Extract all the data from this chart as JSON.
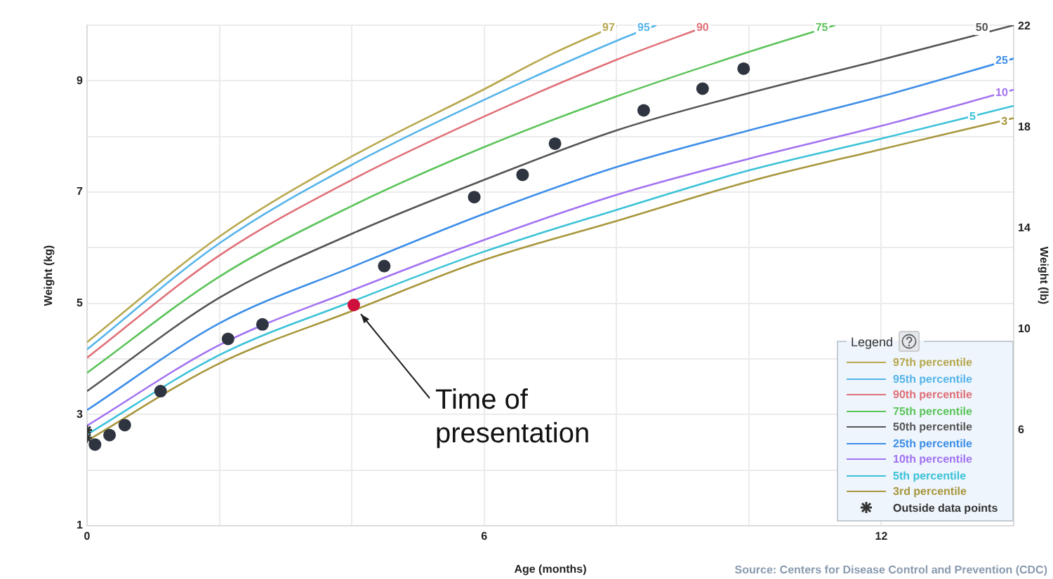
{
  "chart_data": {
    "type": "line",
    "xlabel": "Age (months)",
    "ylabel": "Weight (kg)",
    "y2label": "Weight (lb)",
    "legend_title": "Legend",
    "xlim": [
      0,
      14
    ],
    "xticks": [
      0,
      {
        "value": 2,
        "label": null
      },
      {
        "value": 4,
        "label": null
      },
      6,
      {
        "value": 8,
        "label": null
      },
      {
        "value": 10,
        "label": null
      },
      12
    ],
    "ylim": [
      1,
      10
    ],
    "yticks": [
      1,
      {
        "value": 2,
        "label": null
      },
      3,
      {
        "value": 4,
        "label": null
      },
      5,
      {
        "value": 6,
        "label": null
      },
      7,
      {
        "value": 8,
        "label": null
      },
      9,
      {
        "value": 10,
        "label": null
      }
    ],
    "y2lim": [
      2.2046,
      22.046
    ],
    "y2ticks": [
      6,
      10,
      14,
      18,
      22
    ],
    "grid": true,
    "legend": "bottom right",
    "series": [
      {
        "name": "97th percentile",
        "marker": "none",
        "color": "#b8a84e",
        "x": [
          0,
          2,
          4,
          6,
          7,
          8.0
        ],
        "values": [
          4.3,
          6.2,
          7.64,
          8.85,
          9.47,
          10
        ]
      },
      {
        "name": "95th percentile",
        "marker": "none",
        "color": "#55b4ea",
        "x": [
          0,
          2,
          4,
          6,
          8,
          8.6
        ],
        "values": [
          4.17,
          6.08,
          7.49,
          8.66,
          9.72,
          10
        ]
      },
      {
        "name": "90th percentile",
        "marker": "none",
        "color": "#e07078",
        "x": [
          0,
          2,
          4,
          6,
          8,
          9.4
        ],
        "values": [
          4.02,
          5.86,
          7.22,
          8.36,
          9.38,
          10
        ]
      },
      {
        "name": "75th percentile",
        "marker": "none",
        "color": "#5cc45a",
        "x": [
          0,
          2,
          4,
          6,
          8,
          10,
          11.3
        ],
        "values": [
          3.75,
          5.48,
          6.75,
          7.81,
          8.72,
          9.52,
          10
        ]
      },
      {
        "name": "50th percentile",
        "marker": "none",
        "color": "#555555",
        "x": [
          0,
          2,
          4,
          6,
          8,
          10,
          12,
          14
        ],
        "values": [
          3.42,
          5.1,
          6.25,
          7.22,
          8.11,
          8.78,
          9.38,
          10
        ]
      },
      {
        "name": "25th percentile",
        "marker": "none",
        "color": "#3d8ee8",
        "x": [
          0,
          2,
          4,
          6,
          8,
          10,
          12,
          14
        ],
        "values": [
          3.08,
          4.64,
          5.65,
          6.61,
          7.45,
          8.11,
          8.72,
          9.4
        ]
      },
      {
        "name": "10th percentile",
        "marker": "none",
        "color": "#a272f2",
        "x": [
          0,
          2,
          4,
          6,
          8,
          10,
          12,
          14
        ],
        "values": [
          2.8,
          4.25,
          5.23,
          6.14,
          6.95,
          7.6,
          8.19,
          8.84
        ]
      },
      {
        "name": "5th percentile",
        "marker": "none",
        "color": "#3cc2d8",
        "x": [
          0,
          2,
          4,
          6,
          8,
          10,
          12,
          14
        ],
        "values": [
          2.64,
          4.07,
          5.03,
          5.93,
          6.68,
          7.39,
          7.96,
          8.55
        ]
      },
      {
        "name": "3rd percentile",
        "marker": "none",
        "color": "#a8963c",
        "x": [
          0,
          2,
          4,
          6,
          8,
          10,
          12,
          14
        ],
        "values": [
          2.53,
          3.92,
          4.86,
          5.78,
          6.48,
          7.19,
          7.77,
          8.33
        ]
      },
      {
        "type": "scatter",
        "marker": "circle",
        "color": "#2e3440",
        "x": [
          0.12,
          0.34,
          0.57,
          1.11,
          2.13,
          2.65,
          4.49,
          5.85,
          6.58,
          7.07,
          8.41,
          9.3,
          9.92
        ],
        "values": [
          2.46,
          2.63,
          2.81,
          3.42,
          4.36,
          4.62,
          5.67,
          6.91,
          7.31,
          7.87,
          8.47,
          8.86,
          9.22
        ]
      },
      {
        "type": "scatter",
        "marker": "circle",
        "color": "#d0103c",
        "x": [
          4.03
        ],
        "values": [
          4.97
        ]
      },
      {
        "name": "Outside data points",
        "type": "scatter",
        "marker": "cross",
        "color": "#333333",
        "x": [
          0,
          0
        ],
        "values": [
          2.72,
          2.58
        ]
      }
    ],
    "annotations": [
      {
        "text": "97",
        "x": 7.88,
        "y": 9.95
      },
      {
        "text": "95",
        "x": 8.41,
        "y": 9.95
      },
      {
        "text": "90",
        "x": 9.3,
        "y": 9.95
      },
      {
        "text": "75",
        "x": 11.1,
        "y": 9.95
      },
      {
        "text": "50",
        "x": 13.52,
        "y": 9.95
      },
      {
        "text": "25",
        "x": 13.82,
        "y": 9.36
      },
      {
        "text": "10",
        "x": 13.82,
        "y": 8.78
      },
      {
        "text": "5",
        "x": 13.38,
        "y": 8.35
      },
      {
        "text": "3",
        "x": 13.86,
        "y": 8.27
      },
      {
        "text": "Time of presentation",
        "x": 4.03,
        "y": 4.97
      },
      "Source: Centers for Disease Control and Prevention (CDC)"
    ]
  }
}
